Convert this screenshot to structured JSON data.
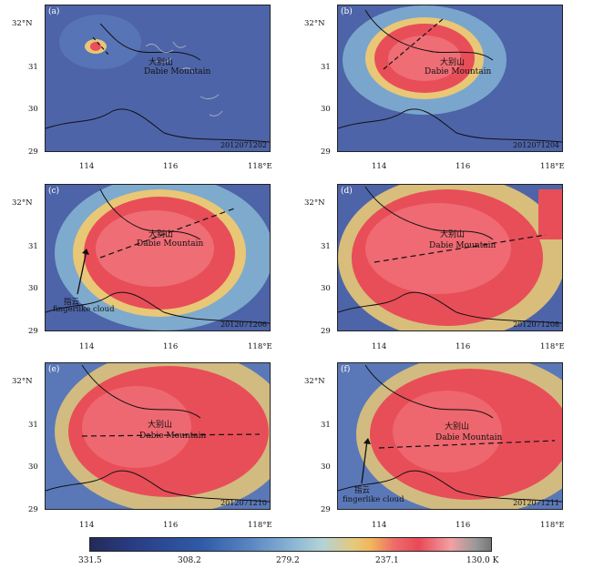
{
  "panels": [
    {
      "label": "(a)",
      "stamp": "2012071202"
    },
    {
      "label": "(b)",
      "stamp": "2012071204"
    },
    {
      "label": "(c)",
      "stamp": "2012071206"
    },
    {
      "label": "(d)",
      "stamp": "2012071208"
    },
    {
      "label": "(e)",
      "stamp": "2012071210"
    },
    {
      "label": "(f)",
      "stamp": "2012071211"
    }
  ],
  "mountain_cn": "大别山",
  "mountain_en": "Dabie Mountain",
  "annotation_cn": "指云",
  "annotation_en": "fingerlike cloud",
  "y_ticks": [
    "32°N",
    "31",
    "30",
    "29"
  ],
  "x_ticks": [
    "114",
    "116",
    "118°E"
  ],
  "colorbar": {
    "ticks": [
      "331.5",
      "308.2",
      "279.2",
      "237.1",
      "130.0 K"
    ]
  }
}
